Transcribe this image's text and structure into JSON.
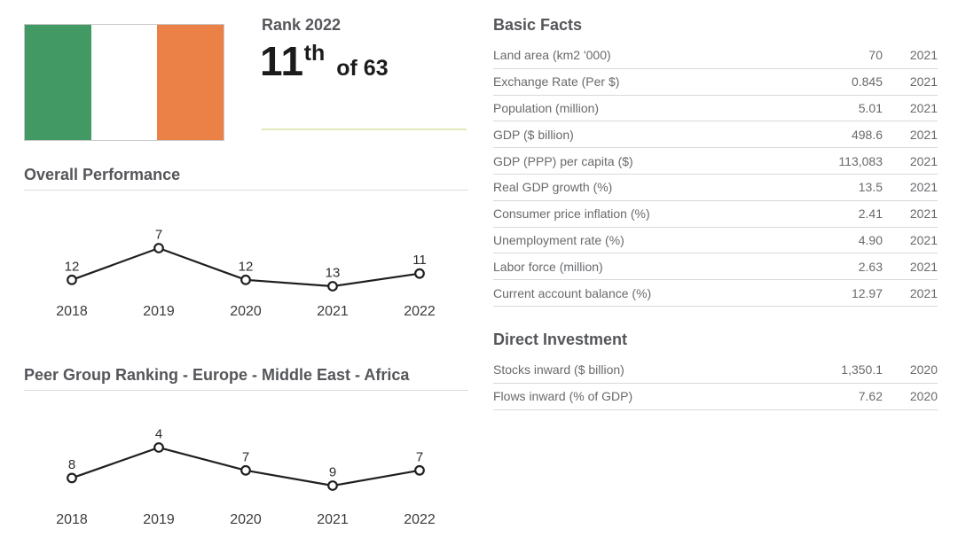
{
  "flag": {
    "country": "Ireland",
    "stripe_colors": [
      "#429963",
      "#FFFFFF",
      "#EB8147"
    ],
    "border_color": "#C9C9C9"
  },
  "rank_panel": {
    "label": "Rank 2022",
    "value": "11",
    "ordinal": "th",
    "of_total": "of 63",
    "divider_color": "#E5E8BC"
  },
  "chart_data": [
    {
      "type": "line",
      "title": "Overall Performance",
      "categories": [
        "2018",
        "2019",
        "2020",
        "2021",
        "2022"
      ],
      "values": [
        12,
        7,
        12,
        13,
        11
      ],
      "xlabel": "",
      "ylabel": "",
      "y_inverted": true,
      "grid": false,
      "legend": "none",
      "marker": "open-circle",
      "line_color": "#1F1F1F"
    },
    {
      "type": "line",
      "title": "Peer Group Ranking - Europe - Middle East - Africa",
      "categories": [
        "2018",
        "2019",
        "2020",
        "2021",
        "2022"
      ],
      "values": [
        8,
        4,
        7,
        9,
        7
      ],
      "xlabel": "",
      "ylabel": "",
      "y_inverted": true,
      "grid": false,
      "legend": "none",
      "marker": "open-circle",
      "line_color": "#1F1F1F"
    }
  ],
  "basic_facts": {
    "title": "Basic Facts",
    "rows": [
      {
        "label": "Land area (km2 '000)",
        "value": "70",
        "year": "2021"
      },
      {
        "label": "Exchange Rate (Per $)",
        "value": "0.845",
        "year": "2021"
      },
      {
        "label": "Population (million)",
        "value": "5.01",
        "year": "2021"
      },
      {
        "label": "GDP ($ billion)",
        "value": "498.6",
        "year": "2021"
      },
      {
        "label": "GDP (PPP) per capita ($)",
        "value": "113,083",
        "year": "2021"
      },
      {
        "label": "Real GDP growth (%)",
        "value": "13.5",
        "year": "2021"
      },
      {
        "label": "Consumer price inflation (%)",
        "value": "2.41",
        "year": "2021"
      },
      {
        "label": "Unemployment rate (%)",
        "value": "4.90",
        "year": "2021"
      },
      {
        "label": "Labor force (million)",
        "value": "2.63",
        "year": "2021"
      },
      {
        "label": "Current account balance (%)",
        "value": "12.97",
        "year": "2021"
      }
    ]
  },
  "direct_investment": {
    "title": "Direct Investment",
    "rows": [
      {
        "label": "Stocks inward ($ billion)",
        "value": "1,350.1",
        "year": "2020"
      },
      {
        "label": "Flows inward (% of GDP)",
        "value": "7.62",
        "year": "2020"
      }
    ]
  }
}
